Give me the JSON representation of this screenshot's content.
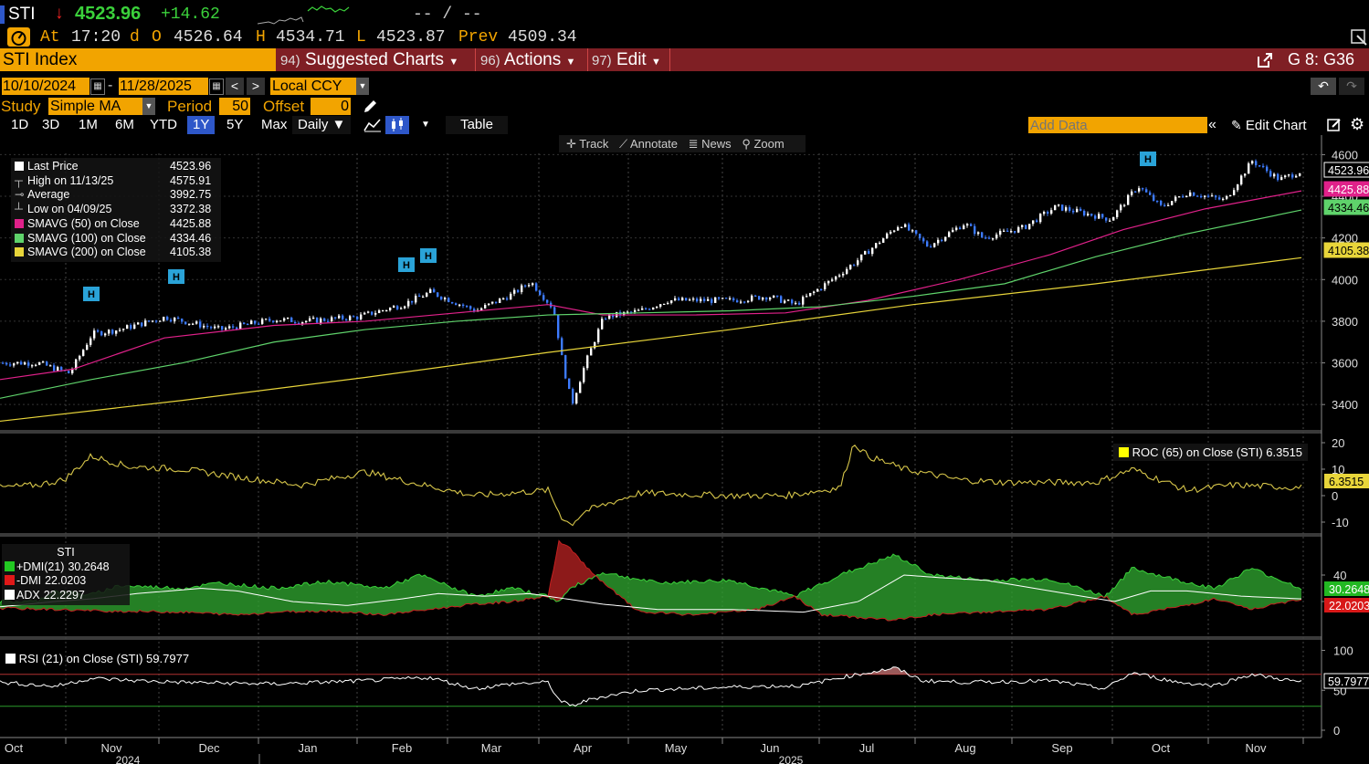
{
  "header": {
    "ticker": "STI",
    "arrow": "↓",
    "last": "4523.96",
    "change": "+14.62",
    "bidask": "-- / --",
    "at_label": "At",
    "time": "17:20",
    "d_label": "d",
    "o_label": "O",
    "open": "4526.64",
    "h_label": "H",
    "high": "4534.71",
    "l_label": "L",
    "low": "4523.87",
    "prev_label": "Prev",
    "prev": "4509.34"
  },
  "menubar": {
    "security": "STI Index",
    "suggested_num": "94)",
    "suggested": "Suggested Charts",
    "actions_num": "96)",
    "actions": "Actions",
    "edit_num": "97)",
    "edit": "Edit",
    "page_id": "G 8: G36"
  },
  "range": {
    "start": "10/10/2024",
    "dash": "-",
    "end": "11/28/2025",
    "currency": "Local CCY"
  },
  "study": {
    "label": "Study",
    "type": "Simple MA",
    "period_label": "Period",
    "period": "50",
    "offset_label": "Offset",
    "offset": "0"
  },
  "periods": [
    "1D",
    "3D",
    "1M",
    "6M",
    "YTD",
    "1Y",
    "5Y",
    "Max"
  ],
  "selected_period": "1Y",
  "frequency": "Daily ▼",
  "table_label": "Table",
  "add_data_placeholder": "Add Data",
  "edit_chart": "Edit Chart",
  "toolbar": {
    "track": "Track",
    "annotate": "Annotate",
    "news": "News",
    "zoom": "Zoom"
  },
  "colors": {
    "amber": "#f2a400",
    "menubar": "#7f1f24",
    "up": "#ffffff",
    "down": "#3d7bff",
    "sma50": "#e0218a",
    "sma100": "#5fd36b",
    "sma200": "#e8d53a",
    "roc": "#d7c64a",
    "dmi_plus": "#2ea02e",
    "dmi_minus": "#b02020",
    "adx": "#ffffff",
    "rsi": "#ffffff"
  },
  "price_legend": [
    {
      "marker": "box",
      "color": "#ffffff",
      "label": "Last Price",
      "value": "4523.96"
    },
    {
      "marker": "T",
      "color": "#cccccc",
      "label": "High on 11/13/25",
      "value": "4575.91"
    },
    {
      "marker": "avg",
      "color": "#cccccc",
      "label": "Average",
      "value": "3992.75"
    },
    {
      "marker": "L",
      "color": "#cccccc",
      "label": "Low on 04/09/25",
      "value": "3372.38"
    },
    {
      "marker": "box",
      "color": "#e0218a",
      "label": "SMAVG (50)  on Close",
      "value": "4425.88"
    },
    {
      "marker": "box",
      "color": "#5fd36b",
      "label": "SMAVG (100)  on Close",
      "value": "4334.46"
    },
    {
      "marker": "box",
      "color": "#e8d53a",
      "label": "SMAVG (200)  on Close",
      "value": "4105.38"
    }
  ],
  "price_axis": {
    "ticks": [
      "4600",
      "4400",
      "4200",
      "4000",
      "3800",
      "3600",
      "3400"
    ],
    "tags": [
      {
        "text": "4523.96",
        "bg": "#000000",
        "fg": "#ffffff",
        "border": "#ffffff"
      },
      {
        "text": "4425.88",
        "bg": "#e0218a",
        "fg": "#ffffff",
        "border": "#e0218a"
      },
      {
        "text": "4334.46",
        "bg": "#5fd36b",
        "fg": "#000000",
        "border": "#5fd36b"
      },
      {
        "text": "4105.38",
        "bg": "#e8d53a",
        "fg": "#000000",
        "border": "#e8d53a"
      }
    ]
  },
  "roc": {
    "legend": "ROC (65)  on Close (STI) 6.3515",
    "ticks": [
      "20",
      "10",
      "0",
      "-10"
    ],
    "tag": "6.3515"
  },
  "dmi": {
    "title": "STI",
    "legend": [
      {
        "color": "#22c822",
        "label": "+DMI(21)",
        "value": "30.2648"
      },
      {
        "color": "#e01818",
        "label": "-DMI",
        "value": "22.0203"
      },
      {
        "color": "#ffffff",
        "label": "ADX",
        "value": "22.2297"
      }
    ],
    "ticks": [
      "40",
      "20"
    ],
    "tag_plus": "30.2648",
    "tag_minus": "22.0203"
  },
  "rsi": {
    "legend": "RSI (21)  on Close (STI) 59.7977",
    "ticks": [
      "100",
      "50",
      "0"
    ],
    "tag": "59.7977"
  },
  "x_axis": {
    "months": [
      "Oct",
      "Nov",
      "Dec",
      "Jan",
      "Feb",
      "Mar",
      "Apr",
      "May",
      "Jun",
      "Jul",
      "Aug",
      "Sep",
      "Oct",
      "Nov"
    ],
    "years": [
      "2024",
      "2025"
    ]
  },
  "chart_data": {
    "type": "line",
    "title": "STI Index",
    "x_range": [
      "10/10/2024",
      "11/28/2025"
    ],
    "ylim": [
      3300,
      4650
    ],
    "series": [
      {
        "name": "Last Price",
        "x": [
          "2024-10",
          "2024-11",
          "2024-12",
          "2025-01",
          "2025-02",
          "2025-03",
          "2025-04",
          "2025-05",
          "2025-06",
          "2025-07",
          "2025-08",
          "2025-09",
          "2025-10",
          "2025-11"
        ],
        "values": [
          3600,
          3740,
          3790,
          3810,
          3870,
          3900,
          3500,
          3880,
          3900,
          4100,
          4230,
          4280,
          4380,
          4524
        ]
      },
      {
        "name": "SMAVG (50)  on Close",
        "values": [
          3530,
          3640,
          3740,
          3780,
          3840,
          3880,
          3840,
          3830,
          3840,
          3890,
          4040,
          4160,
          4300,
          4426
        ]
      },
      {
        "name": "SMAVG (100)  on Close",
        "values": [
          3430,
          3550,
          3640,
          3720,
          3780,
          3820,
          3830,
          3840,
          3860,
          3900,
          3950,
          4060,
          4200,
          4334
        ]
      },
      {
        "name": "SMAVG (200)  on Close",
        "values": [
          3320,
          3400,
          3470,
          3540,
          3610,
          3660,
          3700,
          3740,
          3790,
          3840,
          3900,
          3960,
          4040,
          4105
        ]
      }
    ],
    "stats": {
      "last": 4523.96,
      "high": 4575.91,
      "average": 3992.75,
      "low": 3372.38
    },
    "indicators": {
      "roc65": 6.3515,
      "dmi_plus": 30.2648,
      "dmi_minus": 22.0203,
      "adx": 22.2297,
      "rsi21": 59.7977
    }
  }
}
